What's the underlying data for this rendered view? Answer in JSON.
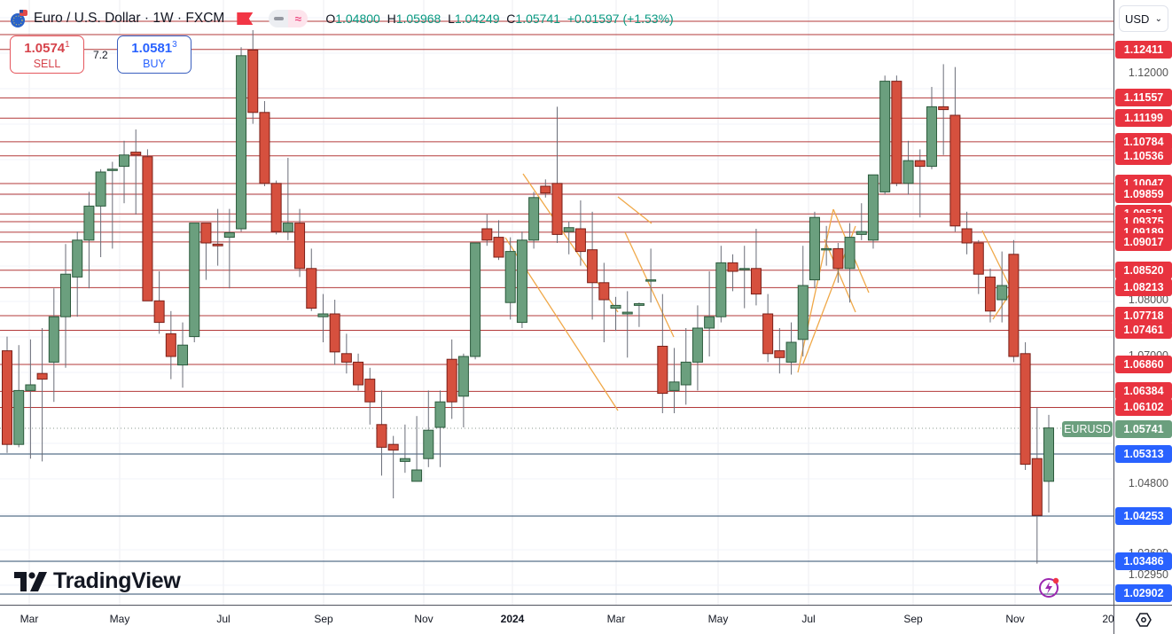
{
  "header": {
    "symbol_title": "Euro / U.S. Dollar · 1W · FXCM",
    "ohlc": {
      "open_label": "O",
      "open": "1.04800",
      "high_label": "H",
      "high": "1.05968",
      "low_label": "L",
      "low": "1.04249",
      "close_label": "C",
      "close": "1.05741",
      "change": "+0.01597 (+1.53%)"
    },
    "icons": [
      "euro-usd-flag-icon",
      "red-flag-icon",
      "minus-icon",
      "approx-icon"
    ]
  },
  "trade": {
    "sell_price_main": "1.0574",
    "sell_price_sup": "1",
    "sell_label": "SELL",
    "spread": "7.2",
    "buy_price_main": "1.0581",
    "buy_price_sup": "3",
    "buy_label": "BUY"
  },
  "currency_selector": {
    "value": "USD"
  },
  "branding": {
    "logo_text": "TradingView"
  },
  "last_price_tag": {
    "symbol": "EURUSD",
    "price": "1.05741",
    "color": "#6b9f7e"
  },
  "colors": {
    "up": "#6b9f7e",
    "down": "#d6503e",
    "resistance_line": "#b33a3a",
    "resistance_badge": "#e8333f",
    "support_line": "#2c4e6e",
    "support_badge": "#2962ff",
    "trendline": "#f0a848"
  },
  "chart_data": {
    "type": "candlestick",
    "title": "Euro / U.S. Dollar · 1W · FXCM",
    "xlabel": "",
    "ylabel": "USD",
    "ylim": [
      1.0275,
      1.132
    ],
    "grid": true,
    "x_tick_labels": [
      "Mar",
      "May",
      "Jul",
      "Sep",
      "Nov",
      "2024",
      "Mar",
      "May",
      "Jul",
      "Sep",
      "Nov",
      "20"
    ],
    "y_tick_labels": [
      "1.12000",
      "1.08000",
      "1.07000",
      "1.04800",
      "1.03600",
      "1.02950"
    ],
    "resistance_levels": [
      "1.12411",
      "1.11557",
      "1.11199",
      "1.10784",
      "1.10536",
      "1.10047",
      "1.09859",
      "1.09511",
      "1.09375",
      "1.09189",
      "1.09017",
      "1.08520",
      "1.08213",
      "1.07718",
      "1.07461",
      "1.06860",
      "1.06384",
      "1.06102"
    ],
    "support_levels": [
      "1.05313",
      "1.04253",
      "1.03486",
      "1.02902"
    ],
    "current_price": "1.05741",
    "last_candle": {
      "open": 1.048,
      "high": 1.05968,
      "low": 1.04249,
      "close": 1.05741
    },
    "candles_ohlc": [
      [
        1.071,
        1.0735,
        1.053,
        1.0545
      ],
      [
        1.0545,
        1.072,
        1.054,
        1.064
      ],
      [
        1.064,
        1.073,
        1.052,
        1.065
      ],
      [
        1.067,
        1.075,
        1.0515,
        1.066
      ],
      [
        1.069,
        1.082,
        1.062,
        1.077
      ],
      [
        1.077,
        1.0898,
        1.068,
        1.0845
      ],
      [
        1.084,
        1.092,
        1.077,
        1.0905
      ],
      [
        1.0905,
        1.099,
        1.082,
        1.0965
      ],
      [
        1.0965,
        1.103,
        1.0875,
        1.1025
      ],
      [
        1.103,
        1.1043,
        1.089,
        1.103
      ],
      [
        1.1035,
        1.108,
        1.097,
        1.1055
      ],
      [
        1.106,
        1.11,
        1.095,
        1.1055
      ],
      [
        1.1052,
        1.1065,
        1.08,
        1.0798
      ],
      [
        1.0798,
        1.085,
        1.074,
        1.076
      ],
      [
        1.074,
        1.078,
        1.066,
        1.07
      ],
      [
        1.0685,
        1.076,
        1.0645,
        1.072
      ],
      [
        1.0735,
        1.0935,
        1.0725,
        1.0935
      ],
      [
        1.0935,
        1.0935,
        1.0835,
        1.09
      ],
      [
        1.0898,
        1.096,
        1.086,
        1.0895
      ],
      [
        1.091,
        1.096,
        1.082,
        1.0918
      ],
      [
        1.0925,
        1.1245,
        1.092,
        1.123
      ],
      [
        1.124,
        1.1275,
        1.111,
        1.113
      ],
      [
        1.113,
        1.115,
        1.1,
        1.1005
      ],
      [
        1.1005,
        1.101,
        1.0915,
        1.092
      ],
      [
        1.092,
        1.105,
        1.0905,
        1.0935
      ],
      [
        1.0935,
        1.096,
        1.084,
        1.0855
      ],
      [
        1.0855,
        1.089,
        1.078,
        1.0785
      ],
      [
        1.077,
        1.081,
        1.0725,
        1.0775
      ],
      [
        1.0775,
        1.08,
        1.0685,
        1.0708
      ],
      [
        1.0705,
        1.074,
        1.067,
        1.069
      ],
      [
        1.069,
        1.0705,
        1.064,
        1.065
      ],
      [
        1.066,
        1.068,
        1.058,
        1.062
      ],
      [
        1.058,
        1.064,
        1.049,
        1.054
      ],
      [
        1.0545,
        1.056,
        1.045,
        1.0535
      ],
      [
        1.0515,
        1.058,
        1.0495,
        1.052
      ],
      [
        1.048,
        1.0595,
        1.05,
        1.05
      ],
      [
        1.052,
        1.064,
        1.0505,
        1.057
      ],
      [
        1.0575,
        1.064,
        1.0505,
        1.062
      ],
      [
        1.0695,
        1.073,
        1.059,
        1.062
      ],
      [
        1.063,
        1.0705,
        1.0575,
        1.07
      ],
      [
        1.07,
        1.09,
        1.0695,
        1.09
      ],
      [
        1.0925,
        1.095,
        1.0895,
        1.0905
      ],
      [
        1.091,
        1.094,
        1.087,
        1.0875
      ],
      [
        1.0795,
        1.091,
        1.0765,
        1.0885
      ],
      [
        1.076,
        1.092,
        1.075,
        1.0905
      ],
      [
        1.0905,
        1.099,
        1.089,
        1.098
      ],
      [
        1.1,
        1.1012,
        1.098,
        1.0988
      ],
      [
        1.1005,
        1.114,
        1.09,
        1.0915
      ],
      [
        1.092,
        1.0938,
        1.088,
        1.0927
      ],
      [
        1.0925,
        1.0975,
        1.086,
        1.0885
      ],
      [
        1.0888,
        1.0955,
        1.0765,
        1.083
      ],
      [
        1.083,
        1.0865,
        1.0725,
        1.08
      ],
      [
        1.0785,
        1.0805,
        1.0745,
        1.079
      ],
      [
        1.0775,
        1.0815,
        1.0698,
        1.0778
      ],
      [
        1.079,
        1.0795,
        1.0752,
        1.0793
      ],
      [
        1.0835,
        1.089,
        1.0795,
        1.0835
      ],
      [
        1.0718,
        1.081,
        1.06,
        1.0635
      ],
      [
        1.064,
        1.0715,
        1.06,
        1.0655
      ],
      [
        1.065,
        1.075,
        1.0615,
        1.069
      ],
      [
        1.069,
        1.079,
        1.064,
        1.075
      ],
      [
        1.075,
        1.085,
        1.07,
        1.077
      ],
      [
        1.077,
        1.0895,
        1.076,
        1.0865
      ],
      [
        1.0865,
        1.088,
        1.0815,
        1.085
      ],
      [
        1.0855,
        1.0895,
        1.0785,
        1.0855
      ],
      [
        1.0855,
        1.0925,
        1.079,
        1.081
      ],
      [
        1.0775,
        1.081,
        1.069,
        1.0705
      ],
      [
        1.071,
        1.075,
        1.067,
        1.0698
      ],
      [
        1.069,
        1.076,
        1.0668,
        1.0725
      ],
      [
        1.073,
        1.0895,
        1.07,
        1.0825
      ],
      [
        1.0835,
        1.0955,
        1.082,
        1.0945
      ],
      [
        1.089,
        1.093,
        1.086,
        1.089
      ],
      [
        1.089,
        1.09,
        1.083,
        1.0855
      ],
      [
        1.0855,
        1.0935,
        1.0795,
        1.091
      ],
      [
        1.0915,
        1.097,
        1.0905,
        1.092
      ],
      [
        1.0905,
        1.102,
        1.089,
        1.102
      ],
      [
        1.099,
        1.1195,
        1.0985,
        1.1185
      ],
      [
        1.1185,
        1.1195,
        1.1,
        1.1005
      ],
      [
        1.1005,
        1.108,
        1.0985,
        1.1045
      ],
      [
        1.1045,
        1.1065,
        1.0945,
        1.1035
      ],
      [
        1.1035,
        1.1175,
        1.103,
        1.114
      ],
      [
        1.114,
        1.1215,
        1.1055,
        1.1135
      ],
      [
        1.1125,
        1.121,
        1.092,
        1.093
      ],
      [
        1.0925,
        1.0955,
        1.088,
        1.09
      ],
      [
        1.09,
        1.0905,
        1.081,
        1.0845
      ],
      [
        1.084,
        1.0855,
        1.076,
        1.078
      ],
      [
        1.08,
        1.0885,
        1.076,
        1.0825
      ],
      [
        1.088,
        1.0905,
        1.069,
        1.07
      ],
      [
        1.0705,
        1.0725,
        1.05,
        1.051
      ],
      [
        1.052,
        1.061,
        1.0335,
        1.042
      ],
      [
        1.048,
        1.0597,
        1.0425,
        1.0574
      ]
    ]
  }
}
